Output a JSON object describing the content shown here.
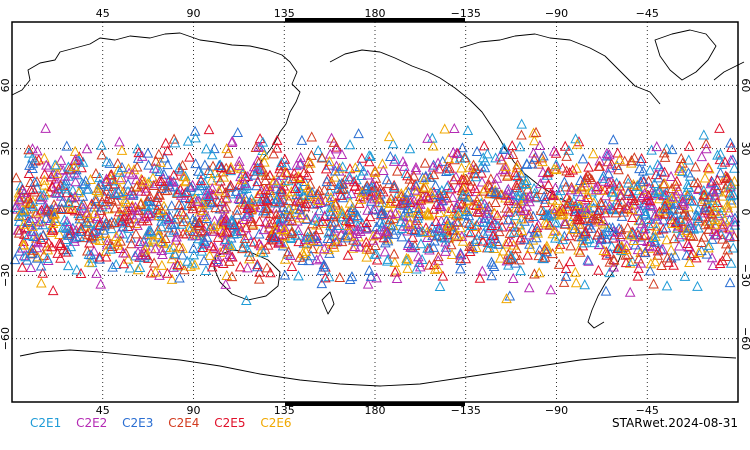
{
  "map": {
    "projection": "cylindrical equidistant, centered on 180",
    "lon_range": [
      0,
      360
    ],
    "lat_range": [
      -90,
      90
    ],
    "top_tick_labels": [
      "45",
      "90",
      "135",
      "180",
      "−135",
      "−90",
      "−45"
    ],
    "bottom_tick_labels": [
      "45",
      "90",
      "135",
      "180",
      "−135",
      "−90",
      "−45"
    ],
    "left_tick_labels": [
      "60",
      "30",
      "0",
      "−30",
      "−60"
    ],
    "right_tick_labels": [
      "60",
      "30",
      "0",
      "−30",
      "−60"
    ],
    "gridlines": "dotted",
    "marker_shape": "open triangle",
    "observation_band_lat": [
      -45,
      45
    ]
  },
  "legend": {
    "items": [
      {
        "label": "C2E1",
        "color": "#1e9bd7"
      },
      {
        "label": "C2E2",
        "color": "#b42ab4"
      },
      {
        "label": "C2E3",
        "color": "#2a6ed2"
      },
      {
        "label": "C2E4",
        "color": "#d23a1e"
      },
      {
        "label": "C2E5",
        "color": "#e0102a"
      },
      {
        "label": "C2E6",
        "color": "#f0a800"
      }
    ]
  },
  "footer": {
    "label": "STARwet.2024-08-31"
  }
}
